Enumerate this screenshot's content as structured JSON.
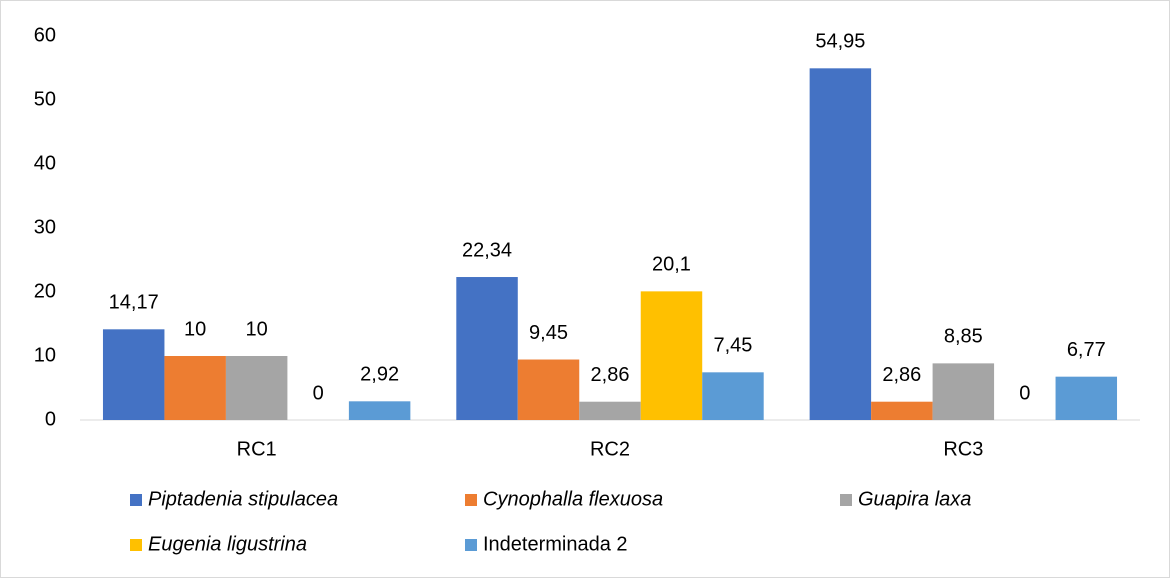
{
  "chart_data": {
    "type": "bar",
    "categories": [
      "RC1",
      "RC2",
      "RC3"
    ],
    "series": [
      {
        "name": "Piptadenia stipulacea",
        "color": "#4472c4",
        "italic": true,
        "values": [
          14.17,
          22.34,
          54.95
        ],
        "value_labels": [
          "14,17",
          "22,34",
          "54,95"
        ]
      },
      {
        "name": "Cynophalla flexuosa",
        "color": "#ed7d31",
        "italic": true,
        "values": [
          10,
          9.45,
          2.86
        ],
        "value_labels": [
          "10",
          "9,45",
          "2,86"
        ]
      },
      {
        "name": "Guapira laxa",
        "color": "#a5a5a5",
        "italic": true,
        "values": [
          10,
          2.86,
          8.85
        ],
        "value_labels": [
          "10",
          "2,86",
          "8,85"
        ]
      },
      {
        "name": "Eugenia ligustrina",
        "color": "#ffc000",
        "italic": true,
        "values": [
          0,
          20.1,
          0
        ],
        "value_labels": [
          "0",
          "20,1",
          "0"
        ]
      },
      {
        "name": "Indeterminada 2",
        "color": "#5b9bd5",
        "italic": false,
        "values": [
          2.92,
          7.45,
          6.77
        ],
        "value_labels": [
          "2,92",
          "7,45",
          "6,77"
        ]
      }
    ],
    "ylim": [
      0,
      60
    ],
    "yticks": [
      0,
      10,
      20,
      30,
      40,
      50,
      60
    ],
    "grid": false,
    "legend": "bottom"
  }
}
